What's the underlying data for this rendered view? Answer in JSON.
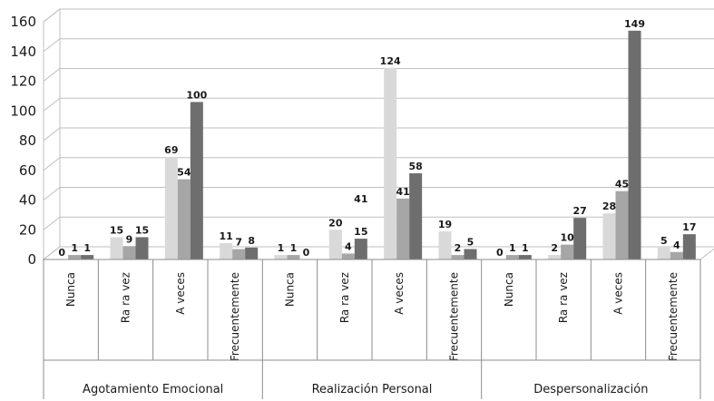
{
  "chart_data": {
    "type": "bar",
    "ylim": [
      0,
      160
    ],
    "yticks": [
      0,
      20,
      40,
      60,
      80,
      100,
      120,
      140,
      160
    ],
    "grid": true,
    "groups": [
      {
        "label": "Agotamiento Emocional",
        "categories": [
          "Nunca",
          "Ra ra vez",
          "A veces",
          "Frecuentemente"
        ],
        "values": [
          [
            0,
            1,
            1
          ],
          [
            15,
            9,
            15
          ],
          [
            69,
            54,
            100
          ],
          [
            11,
            7,
            8
          ]
        ],
        "heights": [
          [
            0,
            3,
            3
          ],
          [
            15,
            9,
            15
          ],
          [
            69,
            54,
            106
          ],
          [
            11,
            7,
            8
          ]
        ]
      },
      {
        "label": "Realización Personal",
        "categories": [
          "Nunca",
          "Ra ra vez",
          "A veces",
          "Frecuentemente"
        ],
        "values": [
          [
            1,
            1,
            0
          ],
          [
            20,
            4,
            15
          ],
          [
            124,
            41,
            58
          ],
          [
            19,
            2,
            5
          ]
        ],
        "heights": [
          [
            3,
            3,
            0
          ],
          [
            20,
            4,
            14
          ],
          [
            129,
            41,
            58
          ],
          [
            19,
            3,
            7
          ]
        ]
      },
      {
        "label": "Despersonalización",
        "categories": [
          "Nunca",
          "Ra ra vez",
          "A veces",
          "Frecuentemente"
        ],
        "values": [
          [
            0,
            1,
            1
          ],
          [
            2,
            10,
            27
          ],
          [
            28,
            45,
            149
          ],
          [
            5,
            4,
            17
          ]
        ],
        "heights": [
          [
            0,
            3,
            3
          ],
          [
            3,
            10,
            28
          ],
          [
            31,
            46,
            154
          ],
          [
            8,
            5,
            17
          ]
        ]
      }
    ],
    "extra_labels": [
      {
        "text": "41",
        "group": 1,
        "category": 1,
        "value": 41
      }
    ],
    "colors": [
      "#d9d9d9",
      "#a6a6a6",
      "#6e6e6e"
    ]
  }
}
